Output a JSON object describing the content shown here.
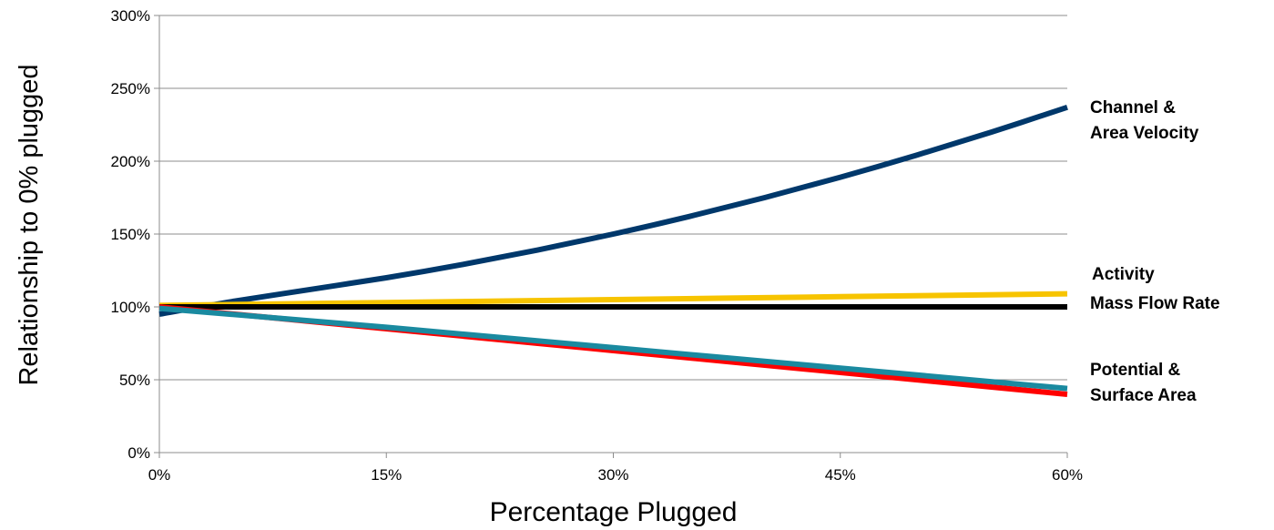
{
  "chart_data": {
    "type": "line",
    "title": "",
    "xlabel": "Percentage Plugged",
    "ylabel": "Relationship to 0% plugged",
    "xlim": [
      0,
      60
    ],
    "ylim": [
      0,
      300
    ],
    "x_ticks": [
      {
        "value": 0,
        "label": "0%"
      },
      {
        "value": 15,
        "label": "15%"
      },
      {
        "value": 30,
        "label": "30%"
      },
      {
        "value": 45,
        "label": "45%"
      },
      {
        "value": 60,
        "label": "60%"
      }
    ],
    "y_ticks": [
      {
        "value": 0,
        "label": "0%"
      },
      {
        "value": 50,
        "label": "50%"
      },
      {
        "value": 100,
        "label": "100%"
      },
      {
        "value": 150,
        "label": "150%"
      },
      {
        "value": 200,
        "label": "200%"
      },
      {
        "value": 250,
        "label": "250%"
      },
      {
        "value": 300,
        "label": "300%"
      }
    ],
    "grid": "horizontal",
    "legend": "none",
    "series": [
      {
        "color": "#00386b",
        "x": [
          0,
          5,
          10,
          15,
          20,
          25,
          30,
          35,
          40,
          45,
          50,
          55,
          60
        ],
        "y": [
          95,
          104,
          112,
          120,
          129,
          139,
          150,
          162,
          175,
          189,
          204,
          220,
          237
        ]
      },
      {
        "color": "#f7c400",
        "x": [
          0,
          15,
          30,
          45,
          60
        ],
        "y": [
          101,
          103,
          105,
          107,
          109
        ]
      },
      {
        "color": "#000000",
        "x": [
          0,
          15,
          30,
          45,
          60
        ],
        "y": [
          100,
          100,
          100,
          100,
          100
        ]
      },
      {
        "color": "#ff0000",
        "x": [
          0,
          15,
          30,
          45,
          60
        ],
        "y": [
          100,
          85,
          70,
          55,
          40
        ]
      },
      {
        "color": "#1a8aa0",
        "x": [
          0,
          15,
          30,
          45,
          60
        ],
        "y": [
          99,
          86,
          72,
          58,
          44
        ]
      }
    ],
    "annotations": [
      {
        "lines": [
          "Channel &",
          "Area Velocity"
        ]
      },
      {
        "lines": [
          "Activity"
        ]
      },
      {
        "lines": [
          "Mass Flow Rate"
        ]
      },
      {
        "lines": [
          "Potential &",
          "Surface Area"
        ]
      }
    ]
  }
}
